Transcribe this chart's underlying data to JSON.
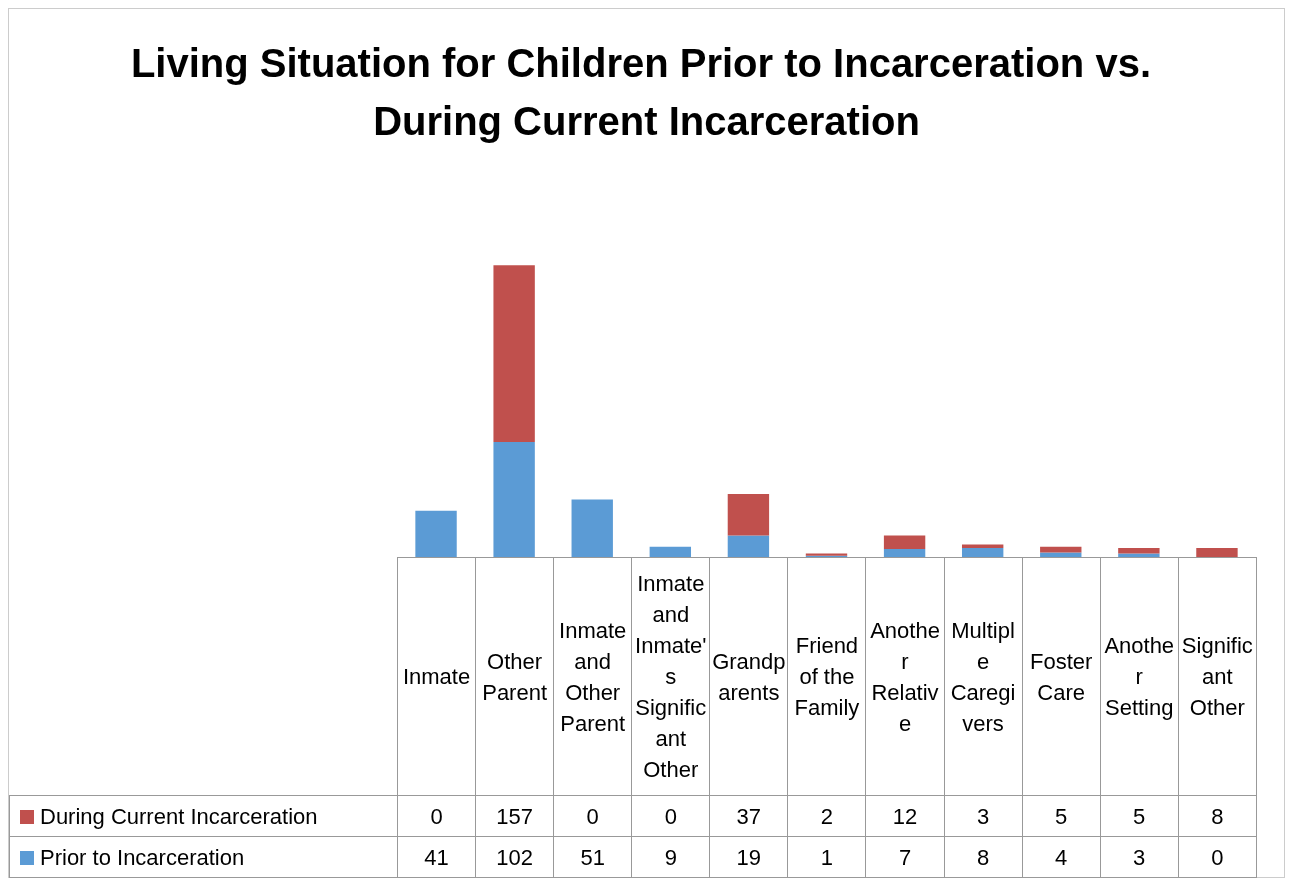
{
  "chart_data": {
    "type": "bar",
    "title": "Living Situation for Children Prior to Incarceration vs. During Current Incarceration",
    "categories": [
      "Inmate",
      "Other Parent",
      "Inmate and Other Parent",
      "Inmate and Inmate's Significant Other",
      "Grandparents",
      "Friend of the Family",
      "Another Relative",
      "Multiple Caregivers",
      "Foster Care",
      "Another Setting",
      "Significant Other"
    ],
    "stacked": true,
    "series": [
      {
        "name": "Prior to Incarceration",
        "color": "#5b9bd5",
        "values": [
          41,
          102,
          51,
          9,
          19,
          1,
          7,
          8,
          4,
          3,
          0
        ]
      },
      {
        "name": "During Current Incarceration",
        "color": "#c0504d",
        "values": [
          0,
          157,
          0,
          0,
          37,
          2,
          12,
          3,
          5,
          5,
          8
        ]
      }
    ],
    "data_labels": true,
    "legend": "bottom",
    "grid": false
  }
}
